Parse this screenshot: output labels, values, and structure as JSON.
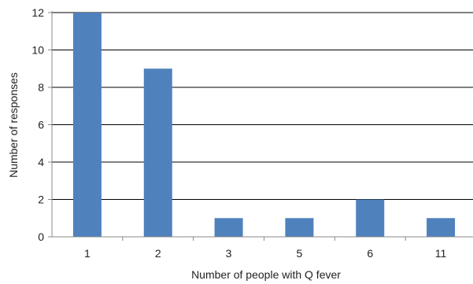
{
  "chart_data": {
    "type": "bar",
    "title": "",
    "xlabel": "Number of people with Q fever",
    "ylabel": "Number of responses",
    "categories": [
      "1",
      "2",
      "3",
      "5",
      "6",
      "11"
    ],
    "values": [
      12,
      9,
      1,
      1,
      2,
      1
    ],
    "ylim": [
      0,
      12
    ],
    "yticks": [
      0,
      2,
      4,
      6,
      8,
      10,
      12
    ],
    "grid": true,
    "legend": "none",
    "bar_color": "#4f81bd",
    "grid_color": "#000000"
  }
}
